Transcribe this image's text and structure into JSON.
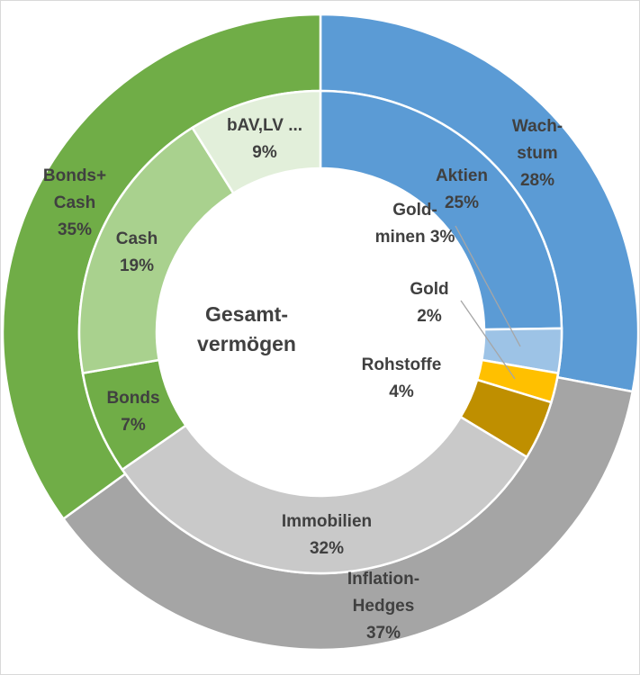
{
  "chart_data": {
    "type": "pie",
    "center_label": [
      "Gesamt-",
      "vermögen"
    ],
    "outer_ring": [
      {
        "name": "Wach-stum",
        "label_lines": [
          "Wach-",
          "stum",
          "28%"
        ],
        "value": 28,
        "color": "#5b9bd5"
      },
      {
        "name": "Inflation-Hedges",
        "label_lines": [
          "Inflation-",
          "Hedges",
          "37%"
        ],
        "value": 37,
        "color": "#a5a5a5"
      },
      {
        "name": "Bonds+ Cash",
        "label_lines": [
          "Bonds+",
          "Cash",
          "35%"
        ],
        "value": 35,
        "color": "#70ad47"
      }
    ],
    "inner_ring": [
      {
        "name": "Aktien",
        "label_lines": [
          "Aktien",
          "25%"
        ],
        "value": 25,
        "color": "#5b9bd5"
      },
      {
        "name": "Gold-minen",
        "label_lines": [
          "Gold-",
          "minen 3%"
        ],
        "value": 3,
        "color": "#9dc3e6"
      },
      {
        "name": "Gold",
        "label_lines": [
          "Gold",
          "2%"
        ],
        "value": 2,
        "color": "#ffc000"
      },
      {
        "name": "Rohstoffe",
        "label_lines": [
          "Rohstoffe",
          "4%"
        ],
        "value": 4,
        "color": "#bf8f00"
      },
      {
        "name": "Immobilien",
        "label_lines": [
          "Immobilien",
          "32%"
        ],
        "value": 32,
        "color": "#c9c9c9"
      },
      {
        "name": "Bonds",
        "label_lines": [
          "Bonds",
          "7%"
        ],
        "value": 7,
        "color": "#70ad47"
      },
      {
        "name": "Cash",
        "label_lines": [
          "Cash",
          "19%"
        ],
        "value": 19,
        "color": "#a9d18e"
      },
      {
        "name": "bAV,LV ...",
        "label_lines": [
          "bAV,LV ...",
          "9%"
        ],
        "value": 9,
        "color": "#e2efda"
      }
    ]
  }
}
